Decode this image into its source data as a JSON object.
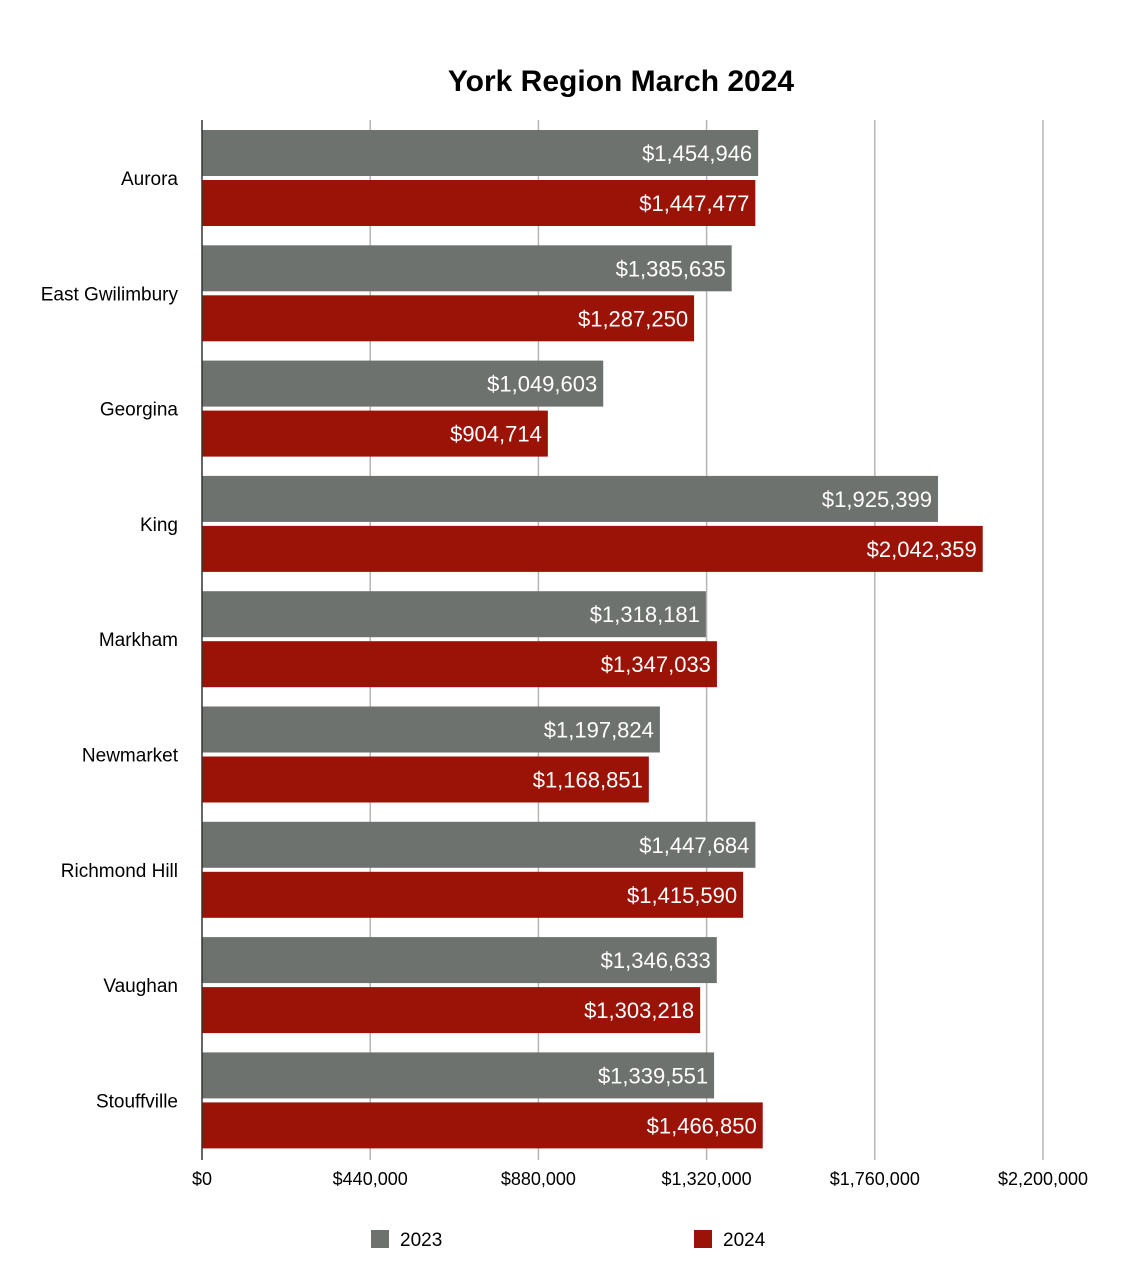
{
  "chart_data": {
    "type": "bar",
    "orientation": "horizontal",
    "title": "York Region March 2024",
    "xlabel": "",
    "ylabel": "",
    "categories": [
      "Aurora",
      "East Gwilimbury",
      "Georgina",
      "King",
      "Markham",
      "Newmarket",
      "Richmond Hill",
      "Vaughan",
      "Stouffville"
    ],
    "series": [
      {
        "name": "2023",
        "color": "#6e726f",
        "values": [
          1454946,
          1385635,
          1049603,
          1925399,
          1318181,
          1197824,
          1447684,
          1346633,
          1339551
        ],
        "labels": [
          "$1,454,946",
          "$1,385,635",
          "$1,049,603",
          "$1,925,399",
          "$1,318,181",
          "$1,197,824",
          "$1,447,684",
          "$1,346,633",
          "$1,339,551"
        ]
      },
      {
        "name": "2024",
        "color": "#9b1206",
        "values": [
          1447477,
          1287250,
          904714,
          2042359,
          1347033,
          1168851,
          1415590,
          1303218,
          1466850
        ],
        "labels": [
          "$1,447,477",
          "$1,287,250",
          "$904,714",
          "$2,042,359",
          "$1,347,033",
          "$1,168,851",
          "$1,415,590",
          "$1,303,218",
          "$1,466,850"
        ]
      }
    ],
    "xlim": [
      0,
      2200000
    ],
    "ticks": [
      0,
      440000,
      880000,
      1320000,
      1760000,
      2200000
    ],
    "tick_labels": [
      "$0",
      "$440,000",
      "$880,000",
      "$1,320,000",
      "$1,760,000",
      "$2,200,000"
    ],
    "grid": true,
    "legend_position": "bottom"
  }
}
